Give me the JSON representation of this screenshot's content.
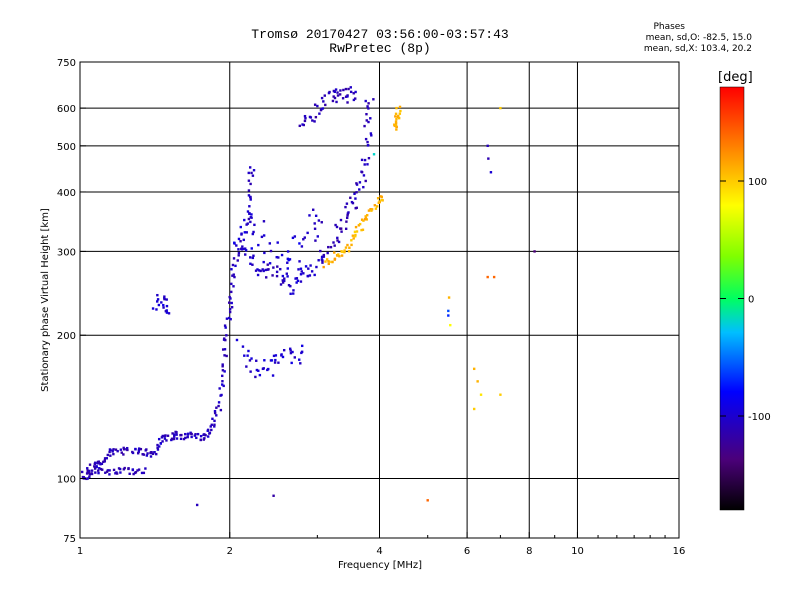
{
  "header": {
    "title_line1": "Tromsø 20170427 03:56:00-03:57:43",
    "title_line2": "RwPretec (8p)"
  },
  "phase_stats": {
    "heading": "Phases",
    "line_o": "mean, sd,O: -82.5, 15.0",
    "line_x": "mean, sd,X: 103.4, 20.2"
  },
  "colorbar": {
    "unit_label": "[deg]",
    "tick_labels": [
      "100",
      "0",
      "-100"
    ],
    "tick_values": [
      100,
      0,
      -100
    ],
    "range": [
      -180,
      180
    ]
  },
  "chart_data": {
    "type": "scatter",
    "title": "Tromsø 20170427 03:56:00-03:57:43",
    "subtitle": "RwPretec (8p)",
    "xlabel": "Frequency [MHz]",
    "ylabel": "Stationary phase Virtual Height [km]",
    "x_scale": "log",
    "y_scale": "log",
    "xlim": [
      1,
      16
    ],
    "ylim": [
      75,
      750
    ],
    "x_ticks": [
      1,
      2,
      4,
      6,
      8,
      10,
      16
    ],
    "x_tick_labels": [
      "1",
      "2",
      "4",
      "6",
      "8",
      "10",
      "16"
    ],
    "x_grid": [
      2,
      4,
      6,
      8,
      10
    ],
    "y_ticks": [
      75,
      100,
      200,
      300,
      400,
      500,
      600,
      750
    ],
    "y_tick_labels": [
      "75",
      "100",
      "200",
      "300",
      "400",
      "500",
      "600",
      "750"
    ],
    "y_grid": [
      100,
      200,
      300,
      400,
      500,
      600
    ],
    "grid": true,
    "color_by": "phase_deg",
    "series": [
      {
        "trace": [
          [
            1.02,
            102,
            -120
          ],
          [
            1.05,
            105,
            -115
          ],
          [
            1.08,
            107,
            -110
          ],
          [
            1.1,
            108,
            -110
          ],
          [
            1.13,
            112,
            -110
          ],
          [
            1.16,
            115,
            -110
          ],
          [
            1.2,
            114,
            -112
          ],
          [
            1.25,
            114,
            -112
          ],
          [
            1.3,
            115,
            -110
          ],
          [
            1.35,
            114,
            -112
          ],
          [
            1.38,
            113,
            -110
          ],
          [
            1.41,
            112,
            -108
          ],
          [
            1.44,
            120,
            -105
          ],
          [
            1.48,
            122,
            -108
          ],
          [
            1.52,
            121,
            -110
          ],
          [
            1.55,
            124,
            -110
          ],
          [
            1.6,
            123,
            -110
          ],
          [
            1.65,
            123,
            -108
          ],
          [
            1.7,
            122,
            -110
          ],
          [
            1.75,
            122,
            -110
          ],
          [
            1.8,
            124,
            -108
          ],
          [
            1.84,
            127,
            -105
          ],
          [
            1.88,
            135,
            -110
          ],
          [
            1.91,
            145,
            -110
          ],
          [
            1.93,
            160,
            -105
          ],
          [
            1.95,
            180,
            -110
          ],
          [
            1.97,
            200,
            -110
          ],
          [
            1.99,
            220,
            -110
          ],
          [
            2.01,
            240,
            -110
          ],
          [
            2.03,
            265,
            -105
          ],
          [
            2.06,
            290,
            -110
          ],
          [
            2.1,
            310,
            -112
          ],
          [
            2.15,
            340,
            -110
          ],
          [
            2.18,
            380,
            -110
          ],
          [
            2.2,
            420,
            -110
          ],
          [
            2.22,
            455,
            -110
          ]
        ],
        "spread": 0.012
      },
      {
        "trace": [
          [
            1.0,
            100,
            -110
          ],
          [
            1.03,
            101,
            -112
          ],
          [
            1.06,
            103,
            -110
          ],
          [
            1.1,
            104,
            -110
          ],
          [
            1.15,
            103,
            -112
          ],
          [
            1.2,
            104,
            -112
          ],
          [
            1.25,
            104,
            -110
          ],
          [
            1.3,
            103,
            -112
          ],
          [
            1.35,
            104,
            -110
          ]
        ],
        "spread": 0.01
      },
      {
        "trace": [
          [
            1.42,
            230,
            -100
          ],
          [
            1.45,
            240,
            -100
          ],
          [
            1.48,
            230,
            -102
          ],
          [
            1.5,
            225,
            -100
          ]
        ],
        "spread": 0.02
      },
      {
        "trace": [
          [
            2.05,
            320,
            -95
          ],
          [
            2.15,
            300,
            -100
          ],
          [
            2.25,
            280,
            -105
          ],
          [
            2.35,
            270,
            -110
          ],
          [
            2.45,
            275,
            -115
          ],
          [
            2.55,
            260,
            -110
          ],
          [
            2.65,
            250,
            -105
          ],
          [
            2.75,
            265,
            -100
          ],
          [
            2.85,
            270,
            -100
          ],
          [
            2.95,
            275,
            -100
          ],
          [
            3.05,
            285,
            -110
          ],
          [
            3.15,
            300,
            -115
          ],
          [
            3.25,
            320,
            -118
          ],
          [
            3.35,
            340,
            -118
          ],
          [
            3.45,
            360,
            -115
          ],
          [
            3.55,
            380,
            -112
          ],
          [
            3.62,
            400,
            -110
          ],
          [
            3.7,
            430,
            -110
          ],
          [
            3.75,
            470,
            -108
          ],
          [
            3.79,
            520,
            -110
          ],
          [
            3.81,
            580,
            -112
          ],
          [
            3.83,
            630,
            -112
          ]
        ],
        "spread": 0.02
      },
      {
        "trace": [
          [
            2.1,
            350,
            -95
          ],
          [
            2.2,
            330,
            -100
          ],
          [
            2.3,
            320,
            -100
          ],
          [
            2.4,
            300,
            -105
          ],
          [
            2.5,
            290,
            -100
          ],
          [
            2.6,
            280,
            -100
          ],
          [
            2.7,
            300,
            -95
          ],
          [
            2.8,
            320,
            -100
          ],
          [
            2.9,
            350,
            -105
          ],
          [
            3.0,
            380,
            -110
          ]
        ],
        "spread": 0.05
      },
      {
        "trace": [
          [
            2.1,
            190,
            -100
          ],
          [
            2.2,
            175,
            -102
          ],
          [
            2.3,
            170,
            -105
          ],
          [
            2.4,
            170,
            -100
          ],
          [
            2.5,
            175,
            -100
          ],
          [
            2.6,
            180,
            -102
          ],
          [
            2.7,
            185,
            -100
          ],
          [
            2.8,
            180,
            -100
          ]
        ],
        "spread": 0.03
      },
      {
        "trace": [
          [
            2.8,
            540,
            -110
          ],
          [
            2.9,
            560,
            -112
          ],
          [
            3.0,
            600,
            -115
          ],
          [
            3.1,
            620,
            -112
          ],
          [
            3.2,
            640,
            -110
          ],
          [
            3.3,
            650,
            -112
          ],
          [
            3.4,
            640,
            -115
          ],
          [
            3.5,
            650,
            -110
          ],
          [
            3.55,
            630,
            -110
          ]
        ],
        "spread": 0.025
      },
      {
        "trace": [
          [
            3.1,
            280,
            110
          ],
          [
            3.2,
            290,
            112
          ],
          [
            3.3,
            295,
            110
          ],
          [
            3.4,
            300,
            108
          ],
          [
            3.5,
            310,
            105
          ],
          [
            3.6,
            325,
            105
          ],
          [
            3.7,
            340,
            110
          ],
          [
            3.8,
            355,
            112
          ],
          [
            3.9,
            370,
            108
          ],
          [
            4.0,
            380,
            105
          ],
          [
            4.05,
            395,
            110
          ]
        ],
        "spread": 0.015
      },
      {
        "trace": [
          [
            4.3,
            540,
            120
          ],
          [
            4.32,
            560,
            115
          ],
          [
            4.35,
            580,
            110
          ],
          [
            4.38,
            610,
            112
          ]
        ],
        "spread": 0.01
      },
      {
        "trace": [
          [
            5.5,
            225,
            -60
          ],
          [
            5.5,
            220,
            -70
          ],
          [
            5.52,
            240,
            110
          ],
          [
            5.55,
            210,
            80
          ],
          [
            6.6,
            500,
            -110
          ],
          [
            6.62,
            470,
            -115
          ],
          [
            6.7,
            440,
            -100
          ],
          [
            6.6,
            265,
            140
          ],
          [
            6.8,
            265,
            140
          ],
          [
            7.0,
            150,
            100
          ],
          [
            6.4,
            150,
            90
          ],
          [
            6.2,
            140,
            100
          ],
          [
            6.3,
            160,
            110
          ],
          [
            8.2,
            300,
            -140
          ],
          [
            5.0,
            90,
            140
          ],
          [
            2.45,
            92,
            -120
          ],
          [
            1.72,
            88,
            -110
          ],
          [
            3.9,
            480,
            -20
          ],
          [
            7.0,
            600,
            100
          ],
          [
            6.2,
            170,
            110
          ]
        ],
        "spread": 0.0
      }
    ]
  }
}
